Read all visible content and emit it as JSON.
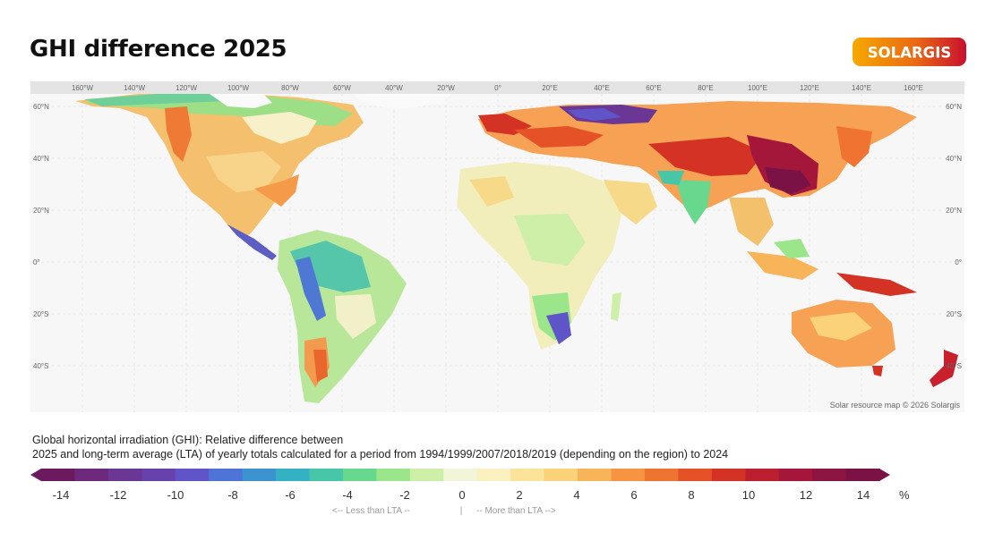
{
  "header": {
    "title": "GHI difference 2025",
    "logo_text": "SOLARGIS",
    "logo_colors": [
      "#f6a800",
      "#e8601c",
      "#c8102e"
    ]
  },
  "map": {
    "longitude_labels": [
      "160°W",
      "140°W",
      "120°W",
      "100°W",
      "80°W",
      "60°W",
      "40°W",
      "20°W",
      "0°",
      "20°E",
      "40°E",
      "60°E",
      "80°E",
      "100°E",
      "120°E",
      "140°E",
      "160°E"
    ],
    "latitude_labels": [
      "60°N",
      "40°N",
      "20°N",
      "0°",
      "20°S",
      "40°S"
    ],
    "credit": "Solar resource map © 2026 Solargis",
    "projection": "equirectangular"
  },
  "description": {
    "line1": "Global horizontal irradiation (GHI): Relative difference between",
    "line2": "2025 and long-term average (LTA) of yearly totals calculated for a period from 1994/1999/2007/2018/2019 (depending on the region) to 2024"
  },
  "legend": {
    "unit": "%",
    "ticks": [
      "-14",
      "-12",
      "-10",
      "-8",
      "-6",
      "-4",
      "-2",
      "0",
      "2",
      "4",
      "6",
      "8",
      "10",
      "12",
      "14"
    ],
    "hint_less": "<-- Less than LTA --",
    "hint_sep": "|",
    "hint_more": "-- More than LTA -->",
    "colors": [
      "#6b1a5e",
      "#6d2a7c",
      "#6a3794",
      "#6742ac",
      "#5f55c8",
      "#4d74d6",
      "#3d93cf",
      "#35b1c4",
      "#48c6a8",
      "#68d88e",
      "#9be58a",
      "#cdefa8",
      "#f2f5d7",
      "#fbf0bf",
      "#fbe39a",
      "#fbd179",
      "#f8b458",
      "#f59541",
      "#ef7431",
      "#e55228",
      "#d33224",
      "#bc1f2f",
      "#a4173b",
      "#8e1442",
      "#7a1246"
    ]
  }
}
